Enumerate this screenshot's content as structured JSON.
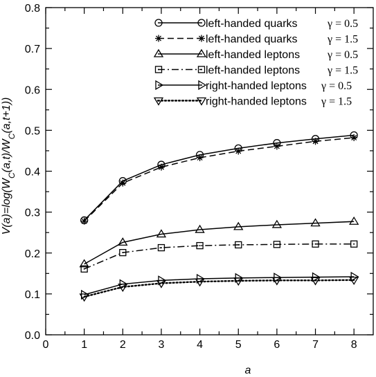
{
  "chart_data": {
    "type": "line",
    "xlabel": "a",
    "ylabel": "V(a)=log(W_C(a,t)/W_C(a,t+1))",
    "xlim": [
      0,
      8.5
    ],
    "ylim": [
      0,
      0.8
    ],
    "x_ticks": [
      "0",
      "1",
      "2",
      "3",
      "4",
      "5",
      "6",
      "7",
      "8"
    ],
    "y_ticks": [
      "0.0",
      "0.1",
      "0.2",
      "0.3",
      "0.4",
      "0.5",
      "0.6",
      "0.7",
      "0.8"
    ],
    "grid": false,
    "legend_position": "top-right",
    "x": [
      1,
      2,
      3,
      4,
      5,
      6,
      7,
      8
    ],
    "series": [
      {
        "name": "left-handed quarks",
        "gamma": "γ = 0.5",
        "marker": "circle",
        "line": "solid",
        "values": [
          0.28,
          0.376,
          0.416,
          0.44,
          0.456,
          0.469,
          0.479,
          0.488
        ]
      },
      {
        "name": "left-handed quarks",
        "gamma": "γ = 1.5",
        "marker": "star",
        "line": "dashed",
        "values": [
          0.278,
          0.371,
          0.41,
          0.433,
          0.449,
          0.461,
          0.473,
          0.482
        ]
      },
      {
        "name": "left-handed leptons",
        "gamma": "γ = 0.5",
        "marker": "triangle-up",
        "line": "solid",
        "values": [
          0.173,
          0.226,
          0.246,
          0.257,
          0.264,
          0.269,
          0.273,
          0.277
        ]
      },
      {
        "name": "left-handed leptons",
        "gamma": "γ = 1.5",
        "marker": "square-dot",
        "line": "dashdot",
        "values": [
          0.161,
          0.201,
          0.213,
          0.218,
          0.22,
          0.221,
          0.222,
          0.222
        ]
      },
      {
        "name": "right-handed leptons",
        "gamma": "γ = 0.5",
        "marker": "triangle-right",
        "line": "solid",
        "values": [
          0.098,
          0.124,
          0.133,
          0.137,
          0.139,
          0.14,
          0.141,
          0.142
        ]
      },
      {
        "name": "right-handed leptons",
        "gamma": "γ = 1.5",
        "marker": "triangle-down",
        "line": "dotted",
        "values": [
          0.093,
          0.117,
          0.126,
          0.13,
          0.132,
          0.133,
          0.133,
          0.134
        ]
      }
    ]
  }
}
